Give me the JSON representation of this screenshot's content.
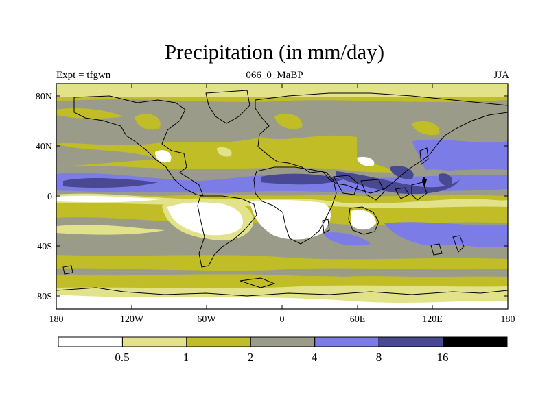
{
  "title": "Precipitation (in mm/day)",
  "left_label": "Expt = tfgwn",
  "center_label": "066_0_MaBP",
  "right_label": "JJA",
  "y_ticks": [
    "80N",
    "40N",
    "0",
    "40S",
    "80S"
  ],
  "x_ticks": [
    "180",
    "120W",
    "60W",
    "0",
    "60E",
    "120E",
    "180"
  ],
  "colorbar": {
    "levels": [
      "0.5",
      "1",
      "2",
      "4",
      "8",
      "16"
    ],
    "colors": [
      "#ffffff",
      "#e2e28a",
      "#c0bd26",
      "#9b9b8a",
      "#7c7ce6",
      "#484893",
      "#000000"
    ]
  }
}
